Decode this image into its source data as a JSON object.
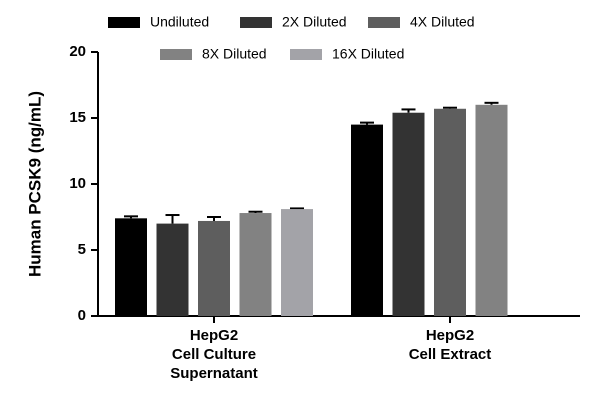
{
  "chart_data": {
    "type": "bar",
    "ylabel": "Human PCSK9 (ng/mL)",
    "categories": [
      [
        "HepG2",
        "Cell Culture",
        "Supernatant"
      ],
      [
        "HepG2",
        "Cell Extract"
      ]
    ],
    "series": [
      {
        "name": "Undiluted",
        "color": "#000000",
        "values": [
          7.4,
          14.5
        ],
        "errors": [
          0.15,
          0.15
        ]
      },
      {
        "name": "2X Diluted",
        "color": "#333333",
        "values": [
          7.0,
          15.4
        ],
        "errors": [
          0.65,
          0.25
        ]
      },
      {
        "name": "4X Diluted",
        "color": "#5e5e5e",
        "values": [
          7.2,
          15.7
        ],
        "errors": [
          0.3,
          0.08
        ]
      },
      {
        "name": "8X Diluted",
        "color": "#828282",
        "values": [
          7.8,
          16.0
        ],
        "errors": [
          0.1,
          0.15
        ]
      },
      {
        "name": "16X Diluted",
        "color": "#a3a3a8",
        "values": [
          8.1,
          null
        ],
        "errors": [
          0.05,
          null
        ]
      }
    ],
    "ylim": [
      0,
      20
    ],
    "yticks": [
      0,
      5,
      10,
      15,
      20
    ]
  }
}
